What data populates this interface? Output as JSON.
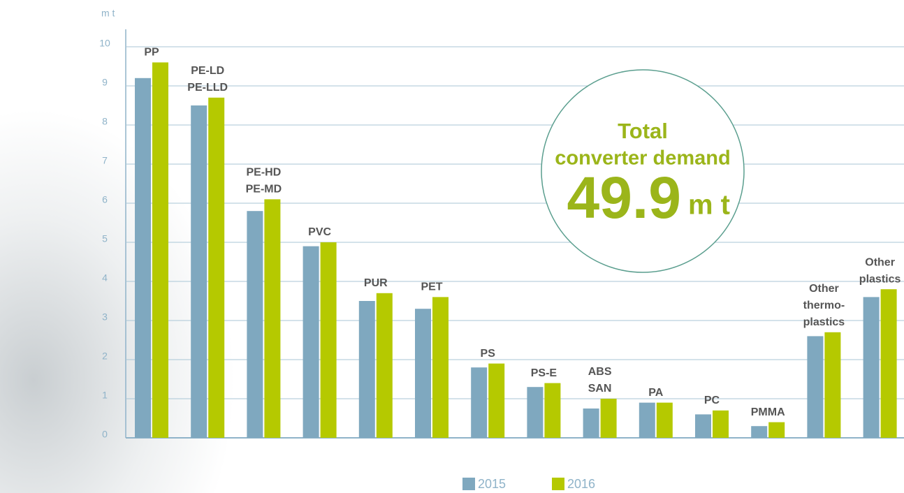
{
  "chart_data": {
    "type": "bar",
    "unit_label": "m t",
    "categories": [
      [
        "PP"
      ],
      [
        "PE-LD",
        "PE-LLD"
      ],
      [
        "PE-HD",
        "PE-MD"
      ],
      [
        "PVC"
      ],
      [
        "PUR"
      ],
      [
        "PET"
      ],
      [
        "PS"
      ],
      [
        "PS-E"
      ],
      [
        "ABS",
        "SAN"
      ],
      [
        "PA"
      ],
      [
        "PC"
      ],
      [
        "PMMA"
      ],
      [
        "Other",
        "thermo-",
        "plastics"
      ],
      [
        "Other",
        "plastics"
      ]
    ],
    "series": [
      {
        "name": "2015",
        "color": "#7fa8bf",
        "values": [
          9.2,
          8.5,
          5.8,
          4.9,
          3.5,
          3.3,
          1.8,
          1.3,
          0.75,
          0.9,
          0.6,
          0.3,
          2.6,
          3.6
        ]
      },
      {
        "name": "2016",
        "color": "#b5c900",
        "values": [
          9.6,
          8.7,
          6.1,
          5.0,
          3.7,
          3.6,
          1.9,
          1.4,
          1.0,
          0.9,
          0.7,
          0.4,
          2.7,
          3.8
        ]
      }
    ],
    "ylim": [
      0,
      10
    ],
    "yticks": [
      0,
      1,
      2,
      3,
      4,
      5,
      6,
      7,
      8,
      9,
      10
    ],
    "grid": true,
    "annotation": {
      "title": [
        "Total",
        "converter demand"
      ],
      "value": 49.9,
      "unit": "m t"
    }
  }
}
